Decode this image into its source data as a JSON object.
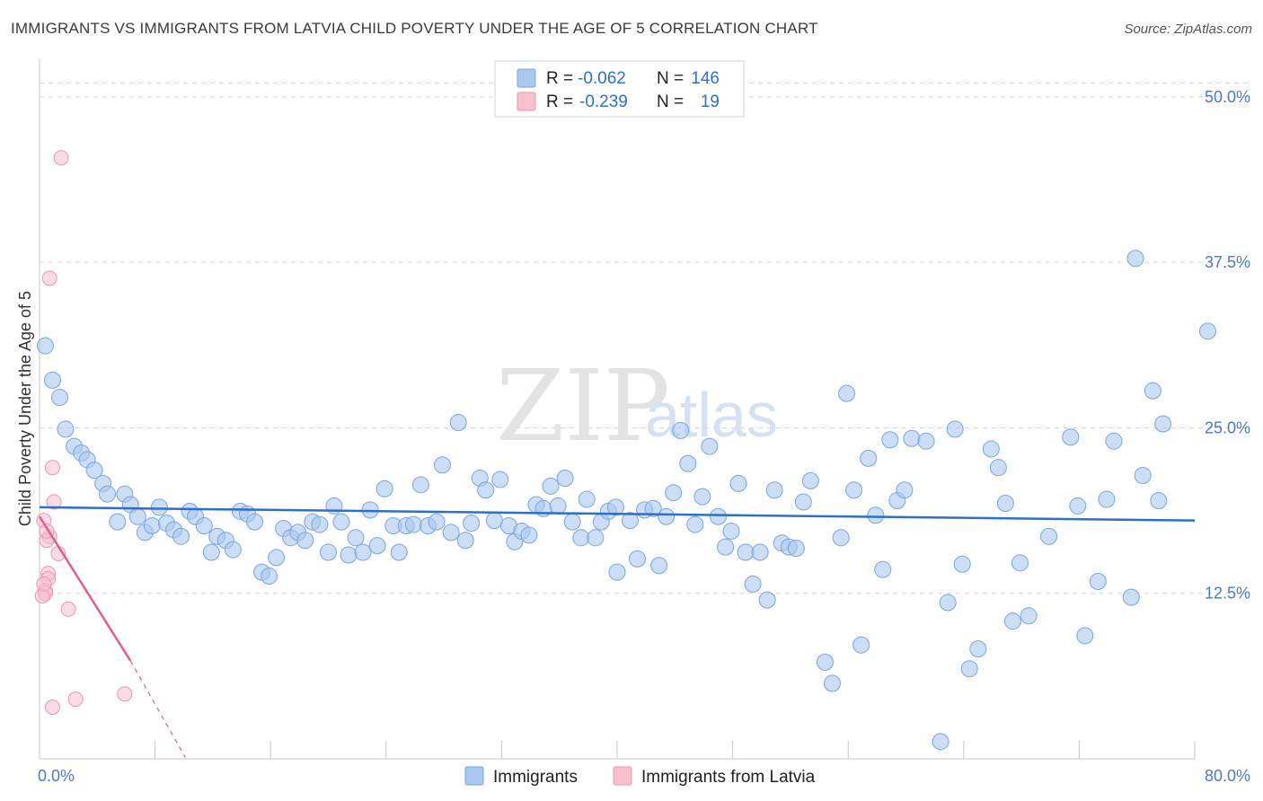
{
  "header": {
    "title": "IMMIGRANTS VS IMMIGRANTS FROM LATVIA CHILD POVERTY UNDER THE AGE OF 5 CORRELATION CHART",
    "source": "Source: ZipAtlas.com"
  },
  "watermark": {
    "zip": "ZIP",
    "atlas": "atlas"
  },
  "legend": {
    "rows": [
      {
        "r_label": "R =",
        "r_value": "-0.062",
        "n_label": "N =",
        "n_value": "146"
      },
      {
        "r_label": "R =",
        "r_value": "-0.239",
        "n_label": "N =",
        "n_value": "19"
      }
    ]
  },
  "bottom_legend": {
    "series1": "Immigrants",
    "series2": "Immigrants from Latvia"
  },
  "colors": {
    "blue_fill": "#aac8ee",
    "blue_stroke": "#7aa6dd",
    "blue_line": "#2e6fcc",
    "pink_fill": "#f7c0d0",
    "pink_stroke": "#ee97b1",
    "pink_line": "#e0608a",
    "grid": "#d8d8d8",
    "tick_text": "#4a7cc8"
  },
  "chart_data": {
    "type": "scatter",
    "title": "IMMIGRANTS VS IMMIGRANTS FROM LATVIA CHILD POVERTY UNDER THE AGE OF 5 CORRELATION CHART",
    "xlabel": "",
    "ylabel": "Child Poverty Under the Age of 5",
    "xlim": [
      0,
      80
    ],
    "ylim": [
      0,
      52.3
    ],
    "x_tick_labels": [
      "0.0%",
      "80.0%"
    ],
    "y_ticks": [
      12.5,
      25.0,
      37.5,
      50.0
    ],
    "y_tick_labels": [
      "12.5%",
      "25.0%",
      "37.5%",
      "50.0%"
    ],
    "grid": true,
    "legend_placement": "top-center",
    "series": [
      {
        "name": "Immigrants",
        "r": -0.062,
        "n": 146,
        "trend": {
          "x": [
            0,
            80
          ],
          "y": [
            19.0,
            18.0
          ]
        },
        "points": [
          [
            0.4,
            31.2
          ],
          [
            0.9,
            28.6
          ],
          [
            1.4,
            27.3
          ],
          [
            1.8,
            24.9
          ],
          [
            2.4,
            23.6
          ],
          [
            2.9,
            23.1
          ],
          [
            3.3,
            22.6
          ],
          [
            3.8,
            21.8
          ],
          [
            4.4,
            20.8
          ],
          [
            4.7,
            20.0
          ],
          [
            5.4,
            17.9
          ],
          [
            5.9,
            20.0
          ],
          [
            6.3,
            19.2
          ],
          [
            6.8,
            18.3
          ],
          [
            7.3,
            17.1
          ],
          [
            7.8,
            17.6
          ],
          [
            8.3,
            19.0
          ],
          [
            8.8,
            17.8
          ],
          [
            9.3,
            17.3
          ],
          [
            9.8,
            16.8
          ],
          [
            10.4,
            18.7
          ],
          [
            10.8,
            18.3
          ],
          [
            11.4,
            17.6
          ],
          [
            11.9,
            15.6
          ],
          [
            12.3,
            16.8
          ],
          [
            12.9,
            16.5
          ],
          [
            13.4,
            15.8
          ],
          [
            13.9,
            18.7
          ],
          [
            14.4,
            18.5
          ],
          [
            14.9,
            17.9
          ],
          [
            15.4,
            14.1
          ],
          [
            15.9,
            13.8
          ],
          [
            16.4,
            15.2
          ],
          [
            16.9,
            17.4
          ],
          [
            17.4,
            16.7
          ],
          [
            17.9,
            17.1
          ],
          [
            18.4,
            16.5
          ],
          [
            18.9,
            17.9
          ],
          [
            19.4,
            17.7
          ],
          [
            20.0,
            15.6
          ],
          [
            20.4,
            19.1
          ],
          [
            20.9,
            17.9
          ],
          [
            21.4,
            15.4
          ],
          [
            21.9,
            16.7
          ],
          [
            22.4,
            15.6
          ],
          [
            22.9,
            18.8
          ],
          [
            23.4,
            16.1
          ],
          [
            23.9,
            20.4
          ],
          [
            24.5,
            17.6
          ],
          [
            24.9,
            15.6
          ],
          [
            25.4,
            17.6
          ],
          [
            25.9,
            17.7
          ],
          [
            26.4,
            20.7
          ],
          [
            26.9,
            17.6
          ],
          [
            27.5,
            17.9
          ],
          [
            27.9,
            22.2
          ],
          [
            28.5,
            17.1
          ],
          [
            29.0,
            25.4
          ],
          [
            29.5,
            16.5
          ],
          [
            29.9,
            17.8
          ],
          [
            30.5,
            21.2
          ],
          [
            30.9,
            20.3
          ],
          [
            31.5,
            18.0
          ],
          [
            31.9,
            21.1
          ],
          [
            32.5,
            17.6
          ],
          [
            32.9,
            16.4
          ],
          [
            33.4,
            17.2
          ],
          [
            33.9,
            16.9
          ],
          [
            34.4,
            19.2
          ],
          [
            34.9,
            18.9
          ],
          [
            35.4,
            20.6
          ],
          [
            35.9,
            19.1
          ],
          [
            36.4,
            21.2
          ],
          [
            36.9,
            17.9
          ],
          [
            37.5,
            16.7
          ],
          [
            37.9,
            19.6
          ],
          [
            38.5,
            16.7
          ],
          [
            38.9,
            17.9
          ],
          [
            39.4,
            18.7
          ],
          [
            39.9,
            19.0
          ],
          [
            40.0,
            14.1
          ],
          [
            40.9,
            18.0
          ],
          [
            41.4,
            15.1
          ],
          [
            41.9,
            18.8
          ],
          [
            42.5,
            18.9
          ],
          [
            42.9,
            14.6
          ],
          [
            43.4,
            18.3
          ],
          [
            43.9,
            20.1
          ],
          [
            44.4,
            24.8
          ],
          [
            44.9,
            22.3
          ],
          [
            45.4,
            17.7
          ],
          [
            45.9,
            19.8
          ],
          [
            46.4,
            23.6
          ],
          [
            47.0,
            18.3
          ],
          [
            47.5,
            16.0
          ],
          [
            47.9,
            17.2
          ],
          [
            48.4,
            20.8
          ],
          [
            48.9,
            15.6
          ],
          [
            49.4,
            13.2
          ],
          [
            49.9,
            15.6
          ],
          [
            50.4,
            12.0
          ],
          [
            50.9,
            20.3
          ],
          [
            51.4,
            16.3
          ],
          [
            51.9,
            16.0
          ],
          [
            52.4,
            15.9
          ],
          [
            52.9,
            19.4
          ],
          [
            53.4,
            21.0
          ],
          [
            54.4,
            7.3
          ],
          [
            54.9,
            5.7
          ],
          [
            55.5,
            16.7
          ],
          [
            55.9,
            27.6
          ],
          [
            56.4,
            20.3
          ],
          [
            56.9,
            8.6
          ],
          [
            57.4,
            22.7
          ],
          [
            57.9,
            18.4
          ],
          [
            58.4,
            14.3
          ],
          [
            58.9,
            24.1
          ],
          [
            59.4,
            19.5
          ],
          [
            59.9,
            20.3
          ],
          [
            60.4,
            24.2
          ],
          [
            61.4,
            24.0
          ],
          [
            62.4,
            1.3
          ],
          [
            62.9,
            11.8
          ],
          [
            63.4,
            24.9
          ],
          [
            63.9,
            14.7
          ],
          [
            64.4,
            6.8
          ],
          [
            65.0,
            8.3
          ],
          [
            65.9,
            23.4
          ],
          [
            66.4,
            22.0
          ],
          [
            66.9,
            19.3
          ],
          [
            67.4,
            10.4
          ],
          [
            67.9,
            14.8
          ],
          [
            68.5,
            10.8
          ],
          [
            69.9,
            16.8
          ],
          [
            71.4,
            24.3
          ],
          [
            71.9,
            19.1
          ],
          [
            72.4,
            9.3
          ],
          [
            73.3,
            13.4
          ],
          [
            73.9,
            19.6
          ],
          [
            74.4,
            24.0
          ],
          [
            75.6,
            12.2
          ],
          [
            76.4,
            21.4
          ],
          [
            77.1,
            27.8
          ],
          [
            77.5,
            19.5
          ],
          [
            77.8,
            25.3
          ],
          [
            75.9,
            37.8
          ],
          [
            80.9,
            32.3
          ]
        ]
      },
      {
        "name": "Immigrants from Latvia",
        "r": -0.239,
        "n": 19,
        "trend": {
          "x": [
            0,
            6.3
          ],
          "y": [
            18.3,
            7.4
          ],
          "dashed_to": {
            "x": 10.1,
            "y": 0.1
          }
        },
        "points": [
          [
            1.5,
            45.4
          ],
          [
            0.7,
            36.3
          ],
          [
            0.9,
            22.0
          ],
          [
            1.0,
            19.4
          ],
          [
            0.3,
            18.0
          ],
          [
            0.7,
            16.8
          ],
          [
            0.5,
            16.5
          ],
          [
            1.3,
            15.5
          ],
          [
            0.6,
            14.0
          ],
          [
            0.6,
            13.6
          ],
          [
            0.4,
            12.7
          ],
          [
            0.4,
            12.5
          ],
          [
            0.2,
            12.3
          ],
          [
            2.0,
            11.3
          ],
          [
            0.9,
            3.9
          ],
          [
            2.5,
            4.5
          ],
          [
            5.9,
            4.9
          ],
          [
            0.3,
            13.2
          ],
          [
            0.5,
            17.2
          ]
        ]
      }
    ]
  }
}
